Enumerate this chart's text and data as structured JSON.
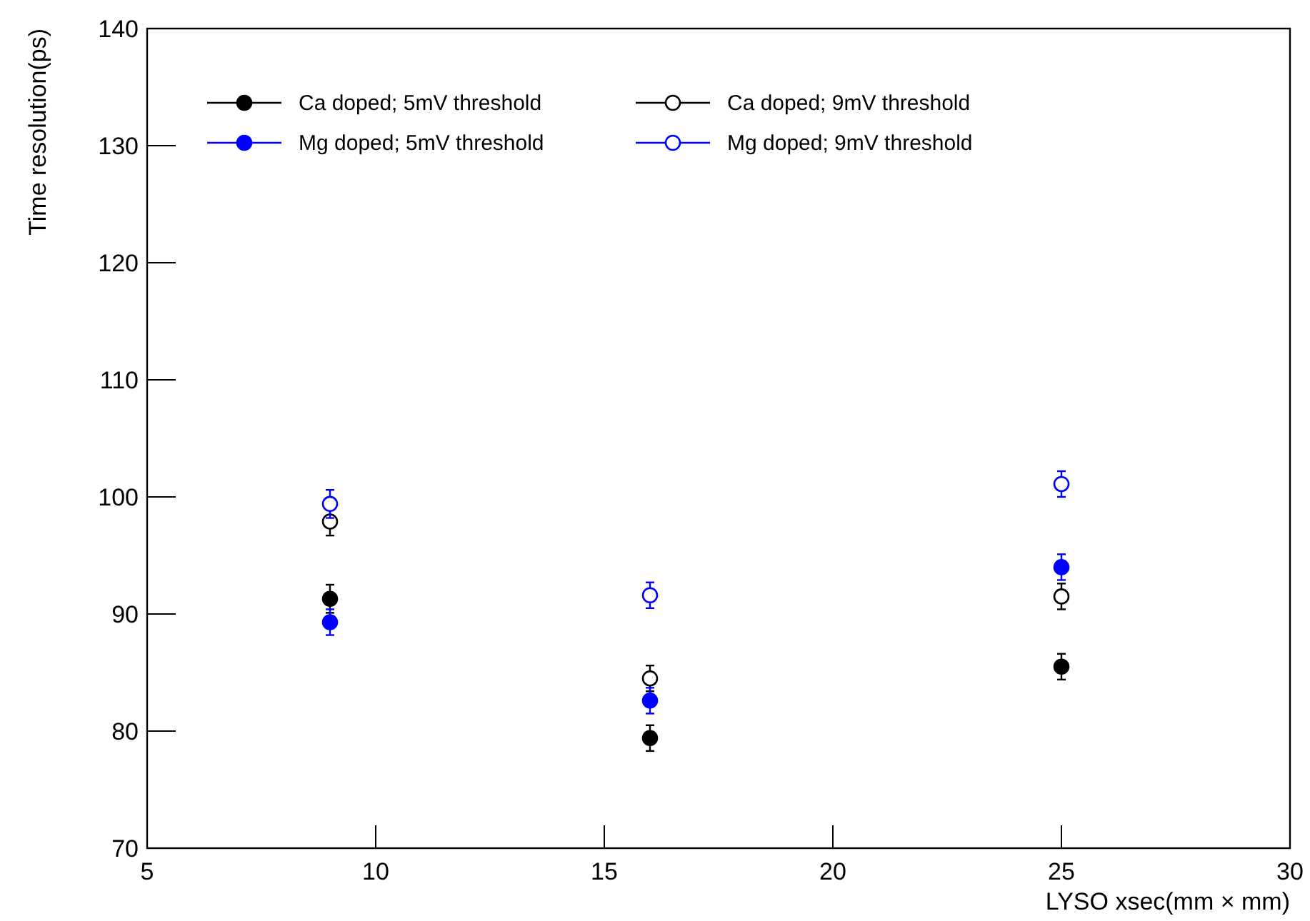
{
  "chart_data": {
    "type": "scatter",
    "xlabel": "LYSO xsec(mm × mm)",
    "ylabel": "Time resolution(ps)",
    "x": [
      9,
      16,
      25
    ],
    "xlim": [
      5,
      30
    ],
    "xticks": [
      5,
      10,
      15,
      20,
      25,
      30
    ],
    "ylim": [
      70,
      140
    ],
    "yticks": [
      70,
      80,
      90,
      100,
      110,
      120,
      130,
      140
    ],
    "grid": false,
    "legend": "top left",
    "marker": "circle",
    "series": [
      {
        "name": "Ca doped; 5mV threshold",
        "color": "#000000",
        "values": [
          91.3,
          79.4,
          85.5
        ],
        "errors": [
          1.2,
          1.1,
          1.1
        ]
      },
      {
        "name": "Ca doped; 9mV threshold",
        "color": "#000000",
        "values": [
          97.9,
          84.5,
          91.5
        ],
        "errors": [
          1.2,
          1.1,
          1.1
        ]
      },
      {
        "name": "Mg doped; 5mV threshold",
        "color": "#0000ff",
        "values": [
          89.3,
          82.6,
          94.0
        ],
        "errors": [
          1.1,
          1.1,
          1.1
        ]
      },
      {
        "name": "Mg doped; 9mV threshold",
        "color": "#0000ff",
        "values": [
          99.4,
          91.6,
          101.1
        ],
        "errors": [
          1.2,
          1.1,
          1.1
        ]
      }
    ]
  }
}
